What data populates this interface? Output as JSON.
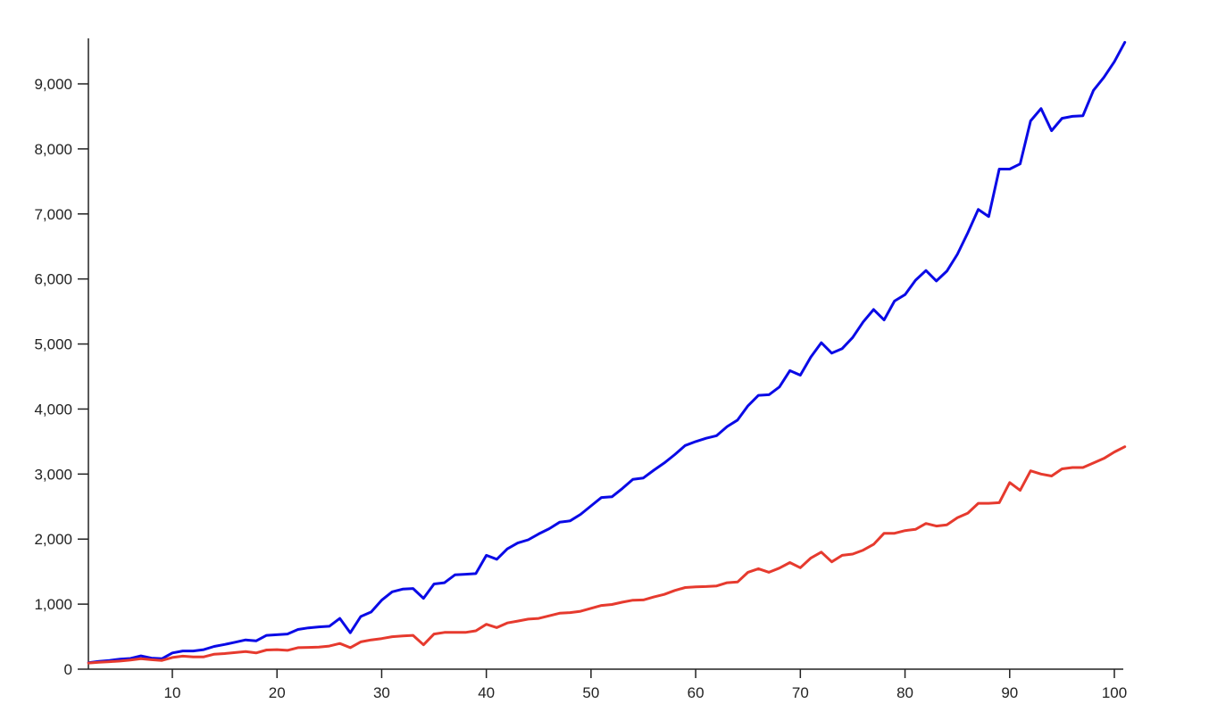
{
  "chart_data": {
    "type": "line",
    "title": "",
    "xlabel": "",
    "ylabel": "",
    "xlim": [
      2,
      101
    ],
    "ylim": [
      0,
      9700
    ],
    "x_ticks": [
      10,
      20,
      30,
      40,
      50,
      60,
      70,
      80,
      90,
      100
    ],
    "x_tick_labels": [
      "10",
      "20",
      "30",
      "40",
      "50",
      "60",
      "70",
      "80",
      "90",
      "100"
    ],
    "y_ticks": [
      0,
      1000,
      2000,
      3000,
      4000,
      5000,
      6000,
      7000,
      8000,
      9000
    ],
    "y_tick_labels": [
      "0",
      "1,000",
      "2,000",
      "3,000",
      "4,000",
      "5,000",
      "6,000",
      "7,000",
      "8,000",
      "9,000"
    ],
    "grid": false,
    "legend": "none",
    "x": [
      2,
      3,
      4,
      5,
      6,
      7,
      8,
      9,
      10,
      11,
      12,
      13,
      14,
      15,
      16,
      17,
      18,
      19,
      20,
      21,
      22,
      23,
      24,
      25,
      26,
      27,
      28,
      29,
      30,
      31,
      32,
      33,
      34,
      35,
      36,
      37,
      38,
      39,
      40,
      41,
      42,
      43,
      44,
      45,
      46,
      47,
      48,
      49,
      50,
      51,
      52,
      53,
      54,
      55,
      56,
      57,
      58,
      59,
      60,
      61,
      62,
      63,
      64,
      65,
      66,
      67,
      68,
      69,
      70,
      71,
      72,
      73,
      74,
      75,
      76,
      77,
      78,
      79,
      80,
      81,
      82,
      83,
      84,
      85,
      86,
      87,
      88,
      89,
      90,
      91,
      92,
      93,
      94,
      95,
      96,
      97,
      98,
      99,
      100,
      101
    ],
    "series": [
      {
        "color": "#0a0ae6",
        "values": [
          100,
          120,
          135,
          155,
          165,
          205,
          170,
          160,
          250,
          280,
          280,
          300,
          350,
          380,
          415,
          450,
          435,
          520,
          530,
          540,
          610,
          635,
          650,
          660,
          780,
          560,
          810,
          880,
          1060,
          1190,
          1230,
          1240,
          1090,
          1310,
          1330,
          1450,
          1460,
          1470,
          1750,
          1690,
          1850,
          1940,
          1990,
          2080,
          2160,
          2260,
          2280,
          2380,
          2510,
          2640,
          2650,
          2780,
          2920,
          2940,
          3060,
          3170,
          3300,
          3440,
          3500,
          3550,
          3590,
          3730,
          3830,
          4050,
          4210,
          4220,
          4340,
          4590,
          4520,
          4800,
          5020,
          4860,
          4930,
          5100,
          5340,
          5530,
          5370,
          5660,
          5760,
          5980,
          6130,
          5970,
          6120,
          6380,
          6710,
          7070,
          6960,
          7690,
          7690,
          7770,
          8430,
          8620,
          8280,
          8470,
          8500,
          8510,
          8900,
          9100,
          9340,
          9640
        ]
      },
      {
        "color": "#e63a2e",
        "values": [
          95,
          105,
          115,
          125,
          140,
          160,
          145,
          135,
          180,
          200,
          190,
          190,
          230,
          240,
          255,
          270,
          250,
          295,
          300,
          290,
          330,
          335,
          340,
          355,
          395,
          330,
          420,
          450,
          470,
          500,
          510,
          520,
          375,
          540,
          565,
          565,
          565,
          590,
          690,
          640,
          710,
          740,
          770,
          780,
          820,
          860,
          870,
          890,
          935,
          980,
          995,
          1030,
          1060,
          1065,
          1110,
          1150,
          1210,
          1255,
          1265,
          1270,
          1280,
          1330,
          1340,
          1490,
          1545,
          1490,
          1555,
          1640,
          1560,
          1710,
          1800,
          1650,
          1750,
          1770,
          1830,
          1920,
          2090,
          2090,
          2130,
          2150,
          2240,
          2200,
          2220,
          2330,
          2400,
          2550,
          2550,
          2560,
          2870,
          2750,
          3050,
          3000,
          2970,
          3080,
          3100,
          3100,
          3170,
          3240,
          3340,
          3420
        ]
      }
    ]
  }
}
